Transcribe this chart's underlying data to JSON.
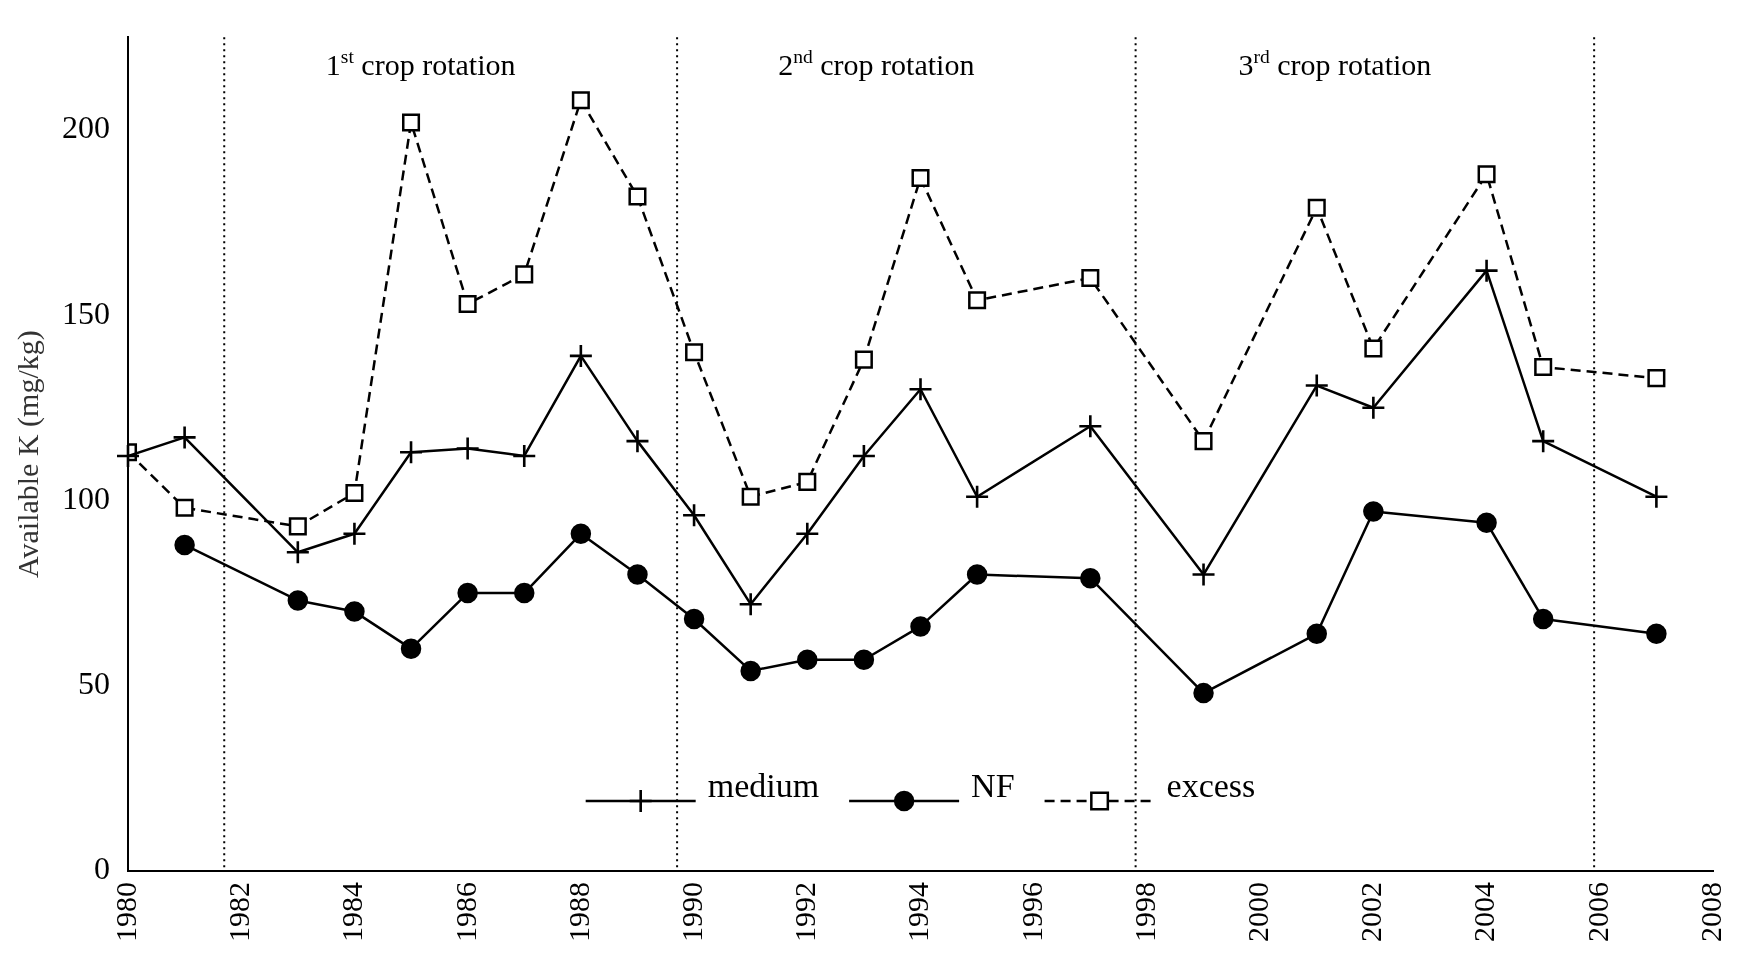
{
  "chart_data": {
    "type": "line",
    "ylabel": "Available K (mg/kg)",
    "xlim": [
      1980,
      2008
    ],
    "xticks": [
      1980,
      1982,
      1984,
      1986,
      1988,
      1990,
      1992,
      1994,
      1996,
      1998,
      2000,
      2002,
      2004,
      2006,
      2008
    ],
    "ylim": [
      0,
      225
    ],
    "yticks": [
      0,
      50,
      100,
      150,
      200
    ],
    "grid": false,
    "legend": "bottom",
    "x": [
      1980,
      1981,
      1983,
      1984,
      1985,
      1986,
      1987,
      1988,
      1989,
      1990,
      1991,
      1992,
      1993,
      1994,
      1995,
      1997,
      1999,
      2001,
      2002,
      2004,
      2005,
      2007
    ],
    "series": [
      {
        "name": "medium",
        "color": "#000000",
        "marker": "cross",
        "line_style": "solid",
        "values": [
          112,
          117,
          86,
          91,
          113,
          114,
          112,
          139,
          116,
          96,
          72,
          91,
          112,
          130,
          101,
          120,
          80,
          131,
          125,
          162,
          116,
          101
        ]
      },
      {
        "name": "NF",
        "color": "#000000",
        "marker": "circle",
        "line_style": "solid",
        "values": [
          null,
          88,
          73,
          70,
          60,
          75,
          75,
          91,
          80,
          68,
          54,
          57,
          57,
          66,
          80,
          79,
          48,
          64,
          97,
          94,
          68,
          64
        ]
      },
      {
        "name": "excess",
        "color": "#000000",
        "marker": "square",
        "line_style": "dashed",
        "values": [
          113,
          98,
          93,
          102,
          202,
          153,
          161,
          208,
          182,
          140,
          101,
          105,
          138,
          187,
          154,
          160,
          116,
          179,
          141,
          188,
          136,
          133
        ]
      }
    ],
    "ref_lines": [
      {
        "axis": "x",
        "value": 1981.7,
        "line_style": "dotted"
      },
      {
        "axis": "x",
        "value": 1989.7,
        "line_style": "dotted"
      },
      {
        "axis": "x",
        "value": 1997.8,
        "line_style": "dotted"
      },
      {
        "axis": "x",
        "value": 2005.9,
        "line_style": "dotted"
      }
    ],
    "annotations": [
      "1$^{st}$ crop rotation",
      "2$^{nd}$ crop rotation",
      "3$^{rd}$ crop rotation"
    ]
  }
}
